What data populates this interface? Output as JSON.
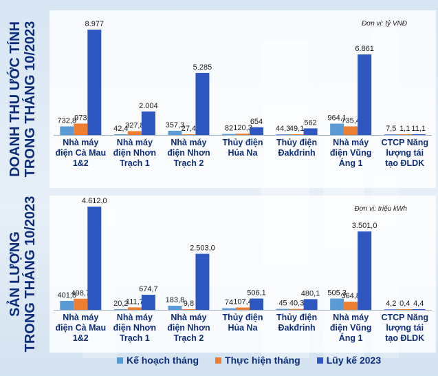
{
  "colors": {
    "plan": "#5b9bd5",
    "actual": "#ed7d31",
    "ytd": "#2f57c2",
    "title": "#0d2d7a"
  },
  "legend": {
    "plan": "Kế hoạch tháng",
    "actual": "Thực hiện tháng",
    "ytd": "Lũy kế 2023"
  },
  "categories": [
    [
      "Nhà máy",
      "điện Cà Mau",
      "1&2"
    ],
    [
      "Nhà máy",
      "điện Nhơn",
      "Trạch  1"
    ],
    [
      "Nhà máy",
      "điện Nhơn",
      "Trạch  2"
    ],
    [
      "Thủy điện",
      "Hủa Na"
    ],
    [
      "Thủy điện",
      "Đakđrinh"
    ],
    [
      "Nhà máy",
      "điện Vũng",
      "Áng 1"
    ],
    [
      "CTCP Năng",
      "lượng tái",
      "tạo ĐLDK"
    ]
  ],
  "chart_data": [
    {
      "type": "bar",
      "title_lines": [
        "DOANH THU ƯỚC TÍNH",
        "TRONG THÁNG 10/2023"
      ],
      "unit": "Đơn vị: tỷ VNĐ",
      "ylim": [
        0,
        8977
      ],
      "series": [
        {
          "name": "Kế hoạch tháng",
          "values": [
            732.8,
            42.4,
            357.3,
            82,
            44.3,
            964.1,
            7.5
          ],
          "labels": [
            "732,8",
            "42,4",
            "357,3",
            "82",
            "44,3",
            "964,1",
            "7,5"
          ]
        },
        {
          "name": "Thực hiện tháng",
          "values": [
            973,
            327.8,
            27.4,
            120.3,
            49.1,
            735.4,
            1.1
          ],
          "labels": [
            "973",
            "327,8",
            "27,4",
            "120,3",
            "49,1",
            "735,4",
            "1,1"
          ]
        },
        {
          "name": "Lũy kế 2023",
          "values": [
            8977,
            2004,
            5285,
            654,
            562,
            6861,
            11.1
          ],
          "labels": [
            "8.977",
            "2.004",
            "5.285",
            "654",
            "562",
            "6.861",
            "11,1"
          ]
        }
      ]
    },
    {
      "type": "bar",
      "title_lines": [
        "SẢN LƯỢNG",
        "TRONG THÁNG 10/2023"
      ],
      "unit": "Đơn vị: triệu kWh",
      "ylim": [
        0,
        4612
      ],
      "series": [
        {
          "name": "Kế hoạch tháng",
          "values": [
            401.8,
            20.2,
            183.8,
            74,
            45,
            505.3,
            4.2
          ],
          "labels": [
            "401,8",
            "20,2",
            "183,8",
            "74",
            "45",
            "505,3",
            "4,2"
          ]
        },
        {
          "name": "Thực hiện tháng",
          "values": [
            498.7,
            111.7,
            9.8,
            107.4,
            40.3,
            364.8,
            0.4
          ],
          "labels": [
            "498,7",
            "111,7",
            "9,8",
            "107,4",
            "40,3",
            "364,8",
            "0,4"
          ]
        },
        {
          "name": "Lũy kế 2023",
          "values": [
            4612.0,
            674.7,
            2503.0,
            506.1,
            480.1,
            3501.0,
            4.4
          ],
          "labels": [
            "4.612,0",
            "674,7",
            "2.503,0",
            "506,1",
            "480,1",
            "3.501,0",
            "4,4"
          ]
        }
      ]
    }
  ]
}
